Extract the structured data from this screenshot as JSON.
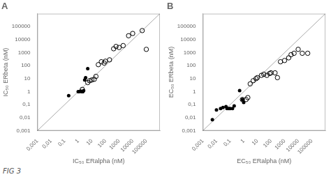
{
  "chart_data": [
    {
      "type": "scatter",
      "title": "A",
      "annotation": "FIG 3",
      "xlabel": "IC₅₀ ERalpha (nM)",
      "ylabel": "IC₅₀ ERbeta (nM)",
      "log": true,
      "grid": false,
      "xlim": [
        0.001,
        1000000
      ],
      "ylim": [
        0.001,
        1000000
      ],
      "xticks": [
        {
          "value": 0.001,
          "label": "0,001"
        },
        {
          "value": 0.01,
          "label": "0,01"
        },
        {
          "value": 0.1,
          "label": "0,1"
        },
        1,
        10,
        100,
        1000,
        10000,
        100000
      ],
      "yticks": [
        {
          "value": 0.001,
          "label": "0,001"
        },
        {
          "value": 0.01,
          "label": "0,01"
        },
        {
          "value": 0.1,
          "label": "0,1"
        },
        1,
        10,
        100,
        1000,
        10000,
        100000
      ],
      "series": [
        {
          "type": "line",
          "color": "#aaaaaa",
          "x": [
            0.001,
            1000000
          ],
          "values": [
            0.001,
            1000000
          ]
        },
        {
          "marker": "circle",
          "color": "#000000",
          "x": [
            0.2,
            1.0,
            1.2,
            1.5,
            1.8,
            2.0,
            2.2,
            2.5,
            3.0,
            3.5,
            5.0
          ],
          "values": [
            0.5,
            1.0,
            1.0,
            1.1,
            1.0,
            1.0,
            1.0,
            1.2,
            8.0,
            12.0,
            60.0
          ]
        },
        {
          "marker": "circle_open",
          "color": "#000000",
          "x": [
            2.0,
            5.0,
            7.0,
            10.0,
            15.0,
            20.0,
            30.0,
            50.0,
            80.0,
            100.0,
            200.0,
            400.0,
            600.0,
            1000.0,
            2000.0,
            5000.0,
            10000.0,
            50000.0,
            100000.0
          ],
          "values": [
            1.5,
            5.0,
            7.0,
            8.0,
            9.0,
            15.0,
            120.0,
            200.0,
            160.0,
            220.0,
            280.0,
            2000.0,
            3000.0,
            2500.0,
            3500.0,
            20000.0,
            30000.0,
            50000.0,
            1800.0
          ]
        }
      ]
    },
    {
      "type": "scatter",
      "title": "B",
      "xlabel": "EC₅₀ ERalpha (nM)",
      "ylabel": "EC₅₀ ERbeta (nM)",
      "log": true,
      "grid": false,
      "xlim": [
        0.001,
        1000000
      ],
      "ylim": [
        0.001,
        1000000
      ],
      "xticks": [
        {
          "value": 0.001,
          "label": "0,001"
        },
        {
          "value": 0.01,
          "label": "0,01"
        },
        {
          "value": 0.1,
          "label": "0,1"
        },
        1,
        10,
        100,
        1000,
        10000,
        100000
      ],
      "yticks": [
        {
          "value": 0.001,
          "label": "0,001"
        },
        {
          "value": 0.01,
          "label": "0,01"
        },
        {
          "value": 0.1,
          "label": "0,1"
        },
        1,
        10,
        100,
        1000,
        10000,
        100000
      ],
      "series": [
        {
          "type": "line",
          "color": "#aaaaaa",
          "x": [
            0.001,
            1000000
          ],
          "values": [
            0.001,
            1000000
          ]
        },
        {
          "marker": "circle",
          "color": "#000000",
          "x": [
            0.005,
            0.01,
            0.02,
            0.03,
            0.05,
            0.06,
            0.08,
            0.1,
            0.15,
            0.2,
            0.5,
            0.8,
            1.0
          ],
          "values": [
            0.007,
            0.04,
            0.05,
            0.06,
            0.07,
            0.05,
            0.05,
            0.05,
            0.05,
            0.08,
            1.2,
            0.25,
            0.15
          ]
        },
        {
          "marker": "circle_open",
          "color": "#000000",
          "x": [
            0.8,
            1.5,
            2.0,
            3.0,
            5.0,
            8.0,
            10.0,
            20.0,
            30.0,
            50.0,
            80.0,
            100.0,
            200.0,
            300.0,
            500.0,
            1000.0,
            2000.0,
            3000.0,
            5000.0,
            10000.0,
            20000.0,
            50000.0
          ],
          "values": [
            0.25,
            0.25,
            0.35,
            4.0,
            7.0,
            10.0,
            12.0,
            18.0,
            22.0,
            18.0,
            25.0,
            28.0,
            28.0,
            12.0,
            200.0,
            250.0,
            400.0,
            700.0,
            900.0,
            1800.0,
            900.0,
            900.0
          ]
        }
      ]
    }
  ]
}
